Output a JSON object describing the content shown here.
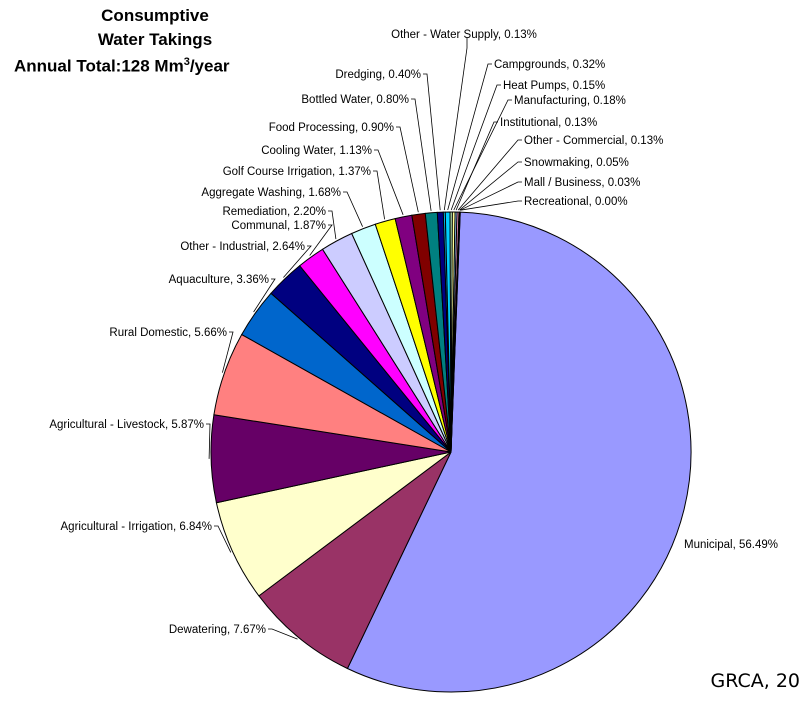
{
  "chart_data": {
    "type": "pie",
    "title_line1": "Consumptive",
    "title_line2": "Water Takings",
    "title_line3_prefix": "Annual Total:128 Mm",
    "title_line3_sup": "3",
    "title_line3_suffix": "/year",
    "slices": [
      {
        "label": "Municipal, 56.49%",
        "value": 56.49,
        "color": "#9999ff"
      },
      {
        "label": "Dewatering, 7.67%",
        "value": 7.67,
        "color": "#993366"
      },
      {
        "label": "Agricultural - Irrigation, 6.84%",
        "value": 6.84,
        "color": "#ffffcc"
      },
      {
        "label": "Agricultural - Livestock, 5.87%",
        "value": 5.87,
        "color": "#660066"
      },
      {
        "label": "Rural Domestic, 5.66%",
        "value": 5.66,
        "color": "#ff8080"
      },
      {
        "label": "Aquaculture, 3.36%",
        "value": 3.36,
        "color": "#0066cc"
      },
      {
        "label": "Other - Industrial, 2.64%",
        "value": 2.64,
        "color": "#000080"
      },
      {
        "label": "Communal, 1.87%",
        "value": 1.87,
        "color": "#ff00ff"
      },
      {
        "label": "Remediation, 2.20%",
        "value": 2.2,
        "color": "#ccccff"
      },
      {
        "label": "Aggregate Washing, 1.68%",
        "value": 1.68,
        "color": "#ccffff"
      },
      {
        "label": "Golf Course Irrigation, 1.37%",
        "value": 1.37,
        "color": "#ffff00"
      },
      {
        "label": "Cooling Water, 1.13%",
        "value": 1.13,
        "color": "#800080"
      },
      {
        "label": "Food Processing, 0.90%",
        "value": 0.9,
        "color": "#800000"
      },
      {
        "label": "Bottled Water, 0.80%",
        "value": 0.8,
        "color": "#008080"
      },
      {
        "label": "Dredging, 0.40%",
        "value": 0.4,
        "color": "#000080"
      },
      {
        "label": "Other - Water Supply, 0.13%",
        "value": 0.13,
        "color": "#00ccff"
      },
      {
        "label": "Campgrounds, 0.32%",
        "value": 0.32,
        "color": "#00ccff"
      },
      {
        "label": "Heat Pumps, 0.15%",
        "value": 0.15,
        "color": "#ccffcc"
      },
      {
        "label": "Manufacturing, 0.18%",
        "value": 0.18,
        "color": "#ffff99"
      },
      {
        "label": "Institutional, 0.13%",
        "value": 0.13,
        "color": "#99ccff"
      },
      {
        "label": "Other - Commercial, 0.13%",
        "value": 0.13,
        "color": "#ff99cc"
      },
      {
        "label": "Snowmaking, 0.05%",
        "value": 0.05,
        "color": "#cc99ff"
      },
      {
        "label": "Mall / Business, 0.03%",
        "value": 0.03,
        "color": "#ffcc99"
      },
      {
        "label": "Recreational, 0.00%",
        "value": 0.0,
        "color": "#3366ff"
      }
    ]
  },
  "source_text": "GRCA, 20"
}
